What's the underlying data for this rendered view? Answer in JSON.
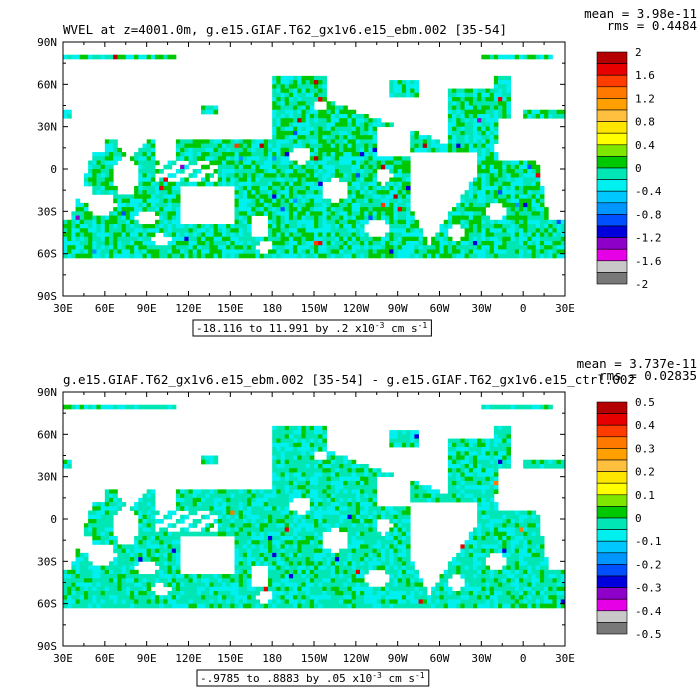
{
  "chart_data": [
    {
      "type": "heatmap",
      "title": "WVEL at z=4001.0m, g.e15.GIAF.T62_gx1v6.e15_ebm.002 [35-54]",
      "stats": {
        "mean": "mean = 3.98e-11",
        "rms": "rms = 0.4484"
      },
      "range_note": {
        "prefix": "-18.116 to 11.991 by .2 x10",
        "exp": "-3",
        "unit": " cm s",
        "unit_exp": "-1"
      },
      "x_ticks": [
        "30E",
        "60E",
        "90E",
        "120E",
        "150E",
        "180",
        "150W",
        "120W",
        "90W",
        "60W",
        "30W",
        "0",
        "30E"
      ],
      "y_ticks": [
        "90N",
        "60N",
        "30N",
        "0",
        "30S",
        "60S",
        "90S"
      ],
      "xlim": [
        30,
        390
      ],
      "ylim": [
        -90,
        90
      ],
      "colorbar": {
        "labels": [
          "2",
          "1.6",
          "1.2",
          "0.8",
          "0.4",
          "0",
          "-0.4",
          "-0.8",
          "-1.2",
          "-1.6",
          "-2"
        ],
        "colors": [
          "#b40000",
          "#e60000",
          "#ff3c00",
          "#ff7800",
          "#ffa000",
          "#ffc040",
          "#ffe600",
          "#ffff00",
          "#7fe600",
          "#00c800",
          "#00e6b4",
          "#00f0f0",
          "#00c8ff",
          "#0096ff",
          "#0050ff",
          "#0000dc",
          "#8c00c8",
          "#e600e6",
          "#c8c8c8",
          "#787878"
        ]
      }
    },
    {
      "type": "heatmap",
      "title": "g.e15.GIAF.T62_gx1v6.e15_ebm.002 [35-54] - g.e15.GIAF.T62_gx1v6.e15_ctrl.002",
      "stats": {
        "mean": "mean = 3.737e-11",
        "rms": "rms = 0.02835"
      },
      "range_note": {
        "prefix": "-.9785 to .8883 by .05 x10",
        "exp": "-3",
        "unit": " cm s",
        "unit_exp": "-1"
      },
      "x_ticks": [
        "30E",
        "60E",
        "90E",
        "120E",
        "150E",
        "180",
        "150W",
        "120W",
        "90W",
        "60W",
        "30W",
        "0",
        "30E"
      ],
      "y_ticks": [
        "90N",
        "60N",
        "30N",
        "0",
        "30S",
        "60S",
        "90S"
      ],
      "xlim": [
        30,
        390
      ],
      "ylim": [
        -90,
        90
      ],
      "colorbar": {
        "labels": [
          "0.5",
          "0.4",
          "0.3",
          "0.2",
          "0.1",
          "0",
          "-0.1",
          "-0.2",
          "-0.3",
          "-0.4",
          "-0.5"
        ],
        "colors": [
          "#b40000",
          "#e60000",
          "#ff3c00",
          "#ff7800",
          "#ffa000",
          "#ffc040",
          "#ffe600",
          "#ffff00",
          "#7fe600",
          "#00c800",
          "#00e6b4",
          "#00f0f0",
          "#00c8ff",
          "#0096ff",
          "#0050ff",
          "#0000dc",
          "#8c00c8",
          "#e600e6",
          "#c8c8c8",
          "#787878"
        ]
      }
    }
  ]
}
